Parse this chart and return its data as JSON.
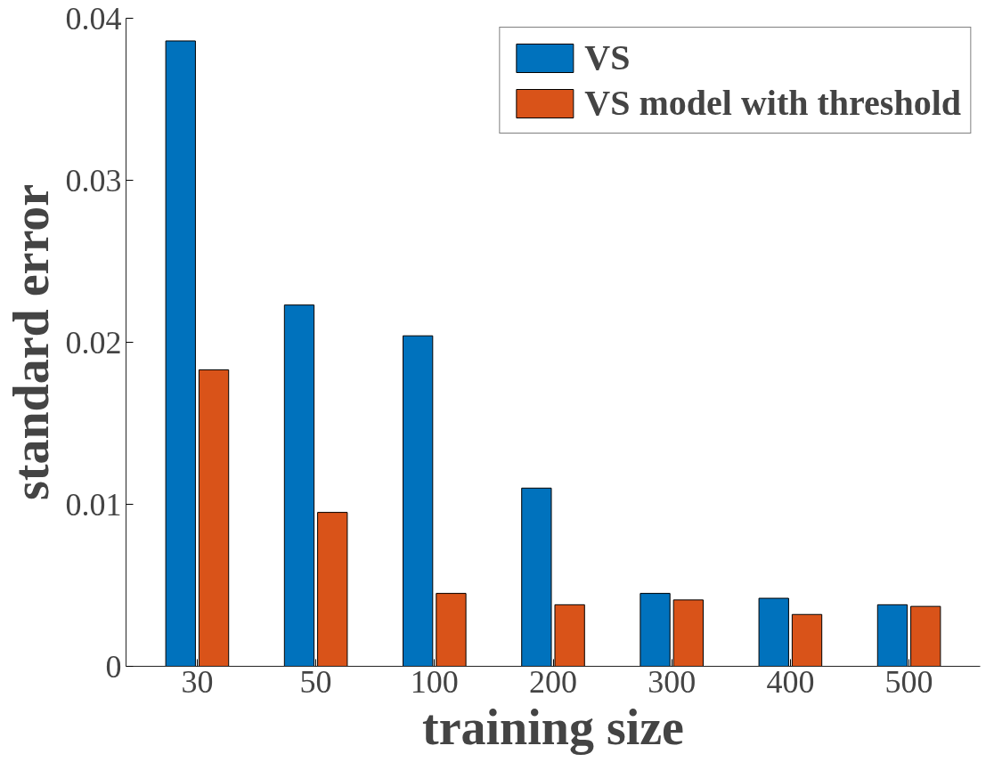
{
  "chart_data": {
    "type": "bar",
    "xlabel": "training size",
    "ylabel": "standard error",
    "categories": [
      "30",
      "50",
      "100",
      "200",
      "300",
      "400",
      "500"
    ],
    "series": [
      {
        "name": "VS",
        "color": "#0072bd",
        "values": [
          0.0386,
          0.0223,
          0.0204,
          0.011,
          0.0045,
          0.0042,
          0.0038
        ]
      },
      {
        "name": "VS model with threshold",
        "color": "#d95319",
        "values": [
          0.0183,
          0.0095,
          0.0045,
          0.0038,
          0.0041,
          0.0032,
          0.0037
        ]
      }
    ],
    "ylim": [
      0,
      0.04
    ],
    "yticks": [
      0,
      0.01,
      0.02,
      0.03,
      0.04
    ],
    "grid": false,
    "legend": "top right"
  }
}
